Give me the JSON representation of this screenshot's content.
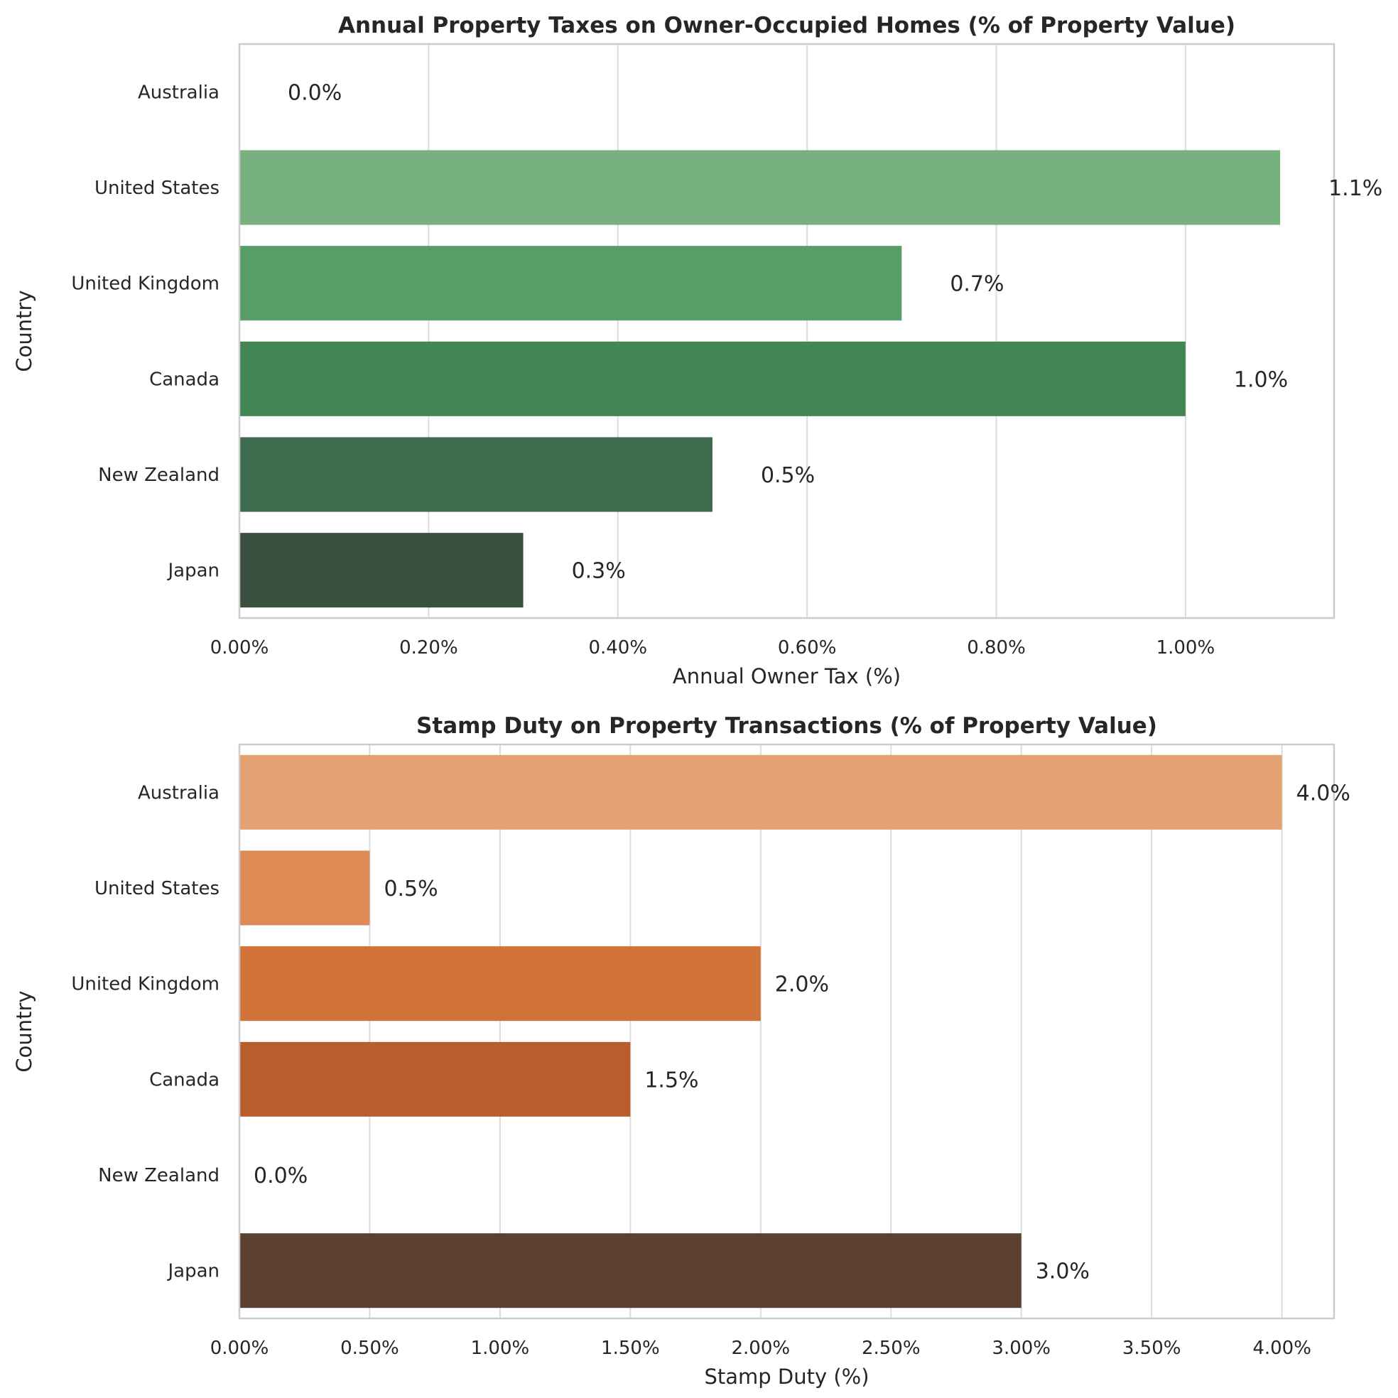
{
  "chart_data": [
    {
      "type": "bar",
      "orientation": "horizontal",
      "title": "Annual Property Taxes on Owner-Occupied Homes (% of Property Value)",
      "xlabel": "Annual Owner Tax (%)",
      "ylabel": "Country",
      "categories": [
        "Australia",
        "United States",
        "United Kingdom",
        "Canada",
        "New Zealand",
        "Japan"
      ],
      "values": [
        0.0,
        1.1,
        0.7,
        1.0,
        0.5,
        0.3
      ],
      "value_labels": [
        "0.0%",
        "1.1%",
        "0.7%",
        "1.0%",
        "0.5%",
        "0.3%"
      ],
      "x_ticks": [
        0,
        0.2,
        0.4,
        0.6,
        0.8,
        1.0
      ],
      "x_tick_labels": [
        "0.00%",
        "0.20%",
        "0.40%",
        "0.60%",
        "0.80%",
        "1.00%"
      ],
      "xlim": [
        0,
        1.157
      ],
      "grid": "vertical",
      "colors": [
        "#a9dba3",
        "#77b17f",
        "#569d67",
        "#428655",
        "#3e6b4e",
        "#394f40"
      ]
    },
    {
      "type": "bar",
      "orientation": "horizontal",
      "title": "Stamp Duty on Property Transactions (% of Property Value)",
      "xlabel": "Stamp Duty (%)",
      "ylabel": "Country",
      "categories": [
        "Australia",
        "United States",
        "United Kingdom",
        "Canada",
        "New Zealand",
        "Japan"
      ],
      "values": [
        4.0,
        0.5,
        2.0,
        1.5,
        0.0,
        3.0
      ],
      "value_labels": [
        "4.0%",
        "0.5%",
        "2.0%",
        "1.5%",
        "0.0%",
        "3.0%"
      ],
      "x_ticks": [
        0,
        0.5,
        1.0,
        1.5,
        2.0,
        2.5,
        3.0,
        3.5,
        4.0
      ],
      "x_tick_labels": [
        "0.00%",
        "0.50%",
        "1.00%",
        "1.50%",
        "2.00%",
        "2.50%",
        "3.00%",
        "3.50%",
        "4.00%"
      ],
      "xlim": [
        0,
        4.2
      ],
      "grid": "vertical",
      "colors": [
        "#e4a272",
        "#df8a55",
        "#d17238",
        "#b85e2d",
        "#8a4a2d",
        "#5c4030"
      ]
    }
  ]
}
